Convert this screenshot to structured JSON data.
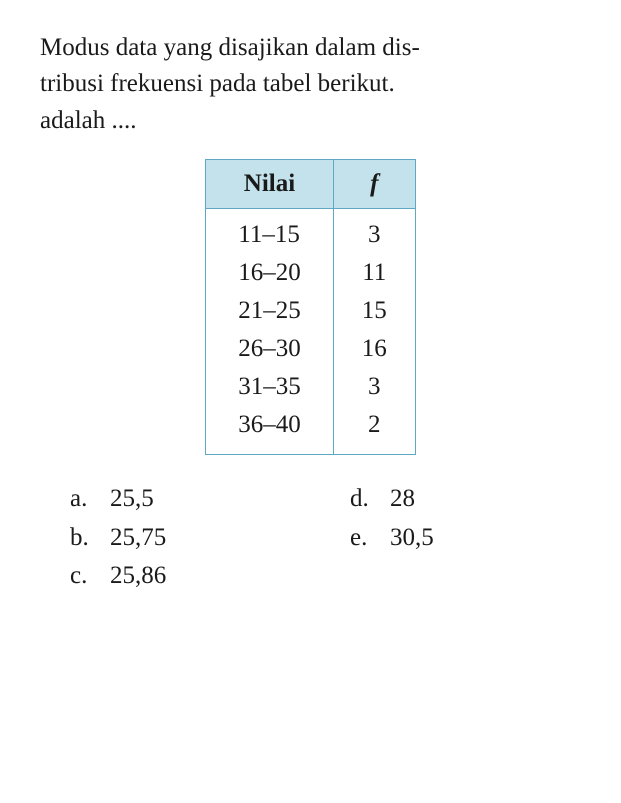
{
  "question": {
    "line1": "Modus data yang disajikan dalam dis-",
    "line2": "tribusi frekuensi pada tabel berikut.",
    "line3": "adalah ...."
  },
  "table": {
    "header_bg": "#c3e2ec",
    "border_color": "#5fa8c4",
    "columns": [
      "Nilai",
      "f"
    ],
    "rows": [
      [
        "11–15",
        "3"
      ],
      [
        "16–20",
        "11"
      ],
      [
        "21–25",
        "15"
      ],
      [
        "26–30",
        "16"
      ],
      [
        "31–35",
        "3"
      ],
      [
        "36–40",
        "2"
      ]
    ]
  },
  "options": {
    "a": {
      "letter": "a.",
      "value": "25,5"
    },
    "b": {
      "letter": "b.",
      "value": "25,75"
    },
    "c": {
      "letter": "c.",
      "value": "25,86"
    },
    "d": {
      "letter": "d.",
      "value": "28"
    },
    "e": {
      "letter": "e.",
      "value": "30,5"
    }
  }
}
